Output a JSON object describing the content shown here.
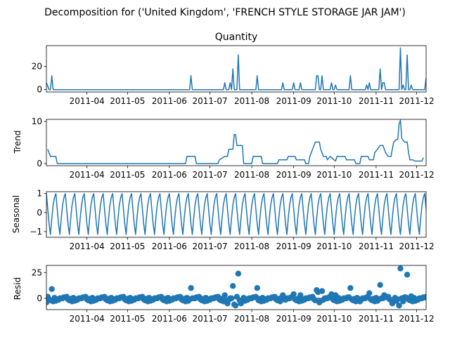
{
  "figure": {
    "suptitle": "Decomposition for ('United Kingdom', 'FRENCH STYLE STORAGE JAR JAM')",
    "series_color": "#1f77b4",
    "x_ticks": [
      "2011-04",
      "2011-05",
      "2011-06",
      "2011-07",
      "2011-08",
      "2011-09",
      "2011-10",
      "2011-11",
      "2011-12"
    ]
  },
  "chart_data": [
    {
      "type": "line",
      "title": "Quantity",
      "ylabel": "",
      "xlim": [
        "2011-03-02",
        "2011-12-08"
      ],
      "ylim": [
        -2,
        38
      ],
      "yticks": [
        0,
        20
      ],
      "points": [
        [
          "2011-03-02",
          6
        ],
        [
          "2011-03-04",
          0
        ],
        [
          "2011-03-05",
          0
        ],
        [
          "2011-03-06",
          12
        ],
        [
          "2011-03-07",
          0
        ],
        [
          "2011-06-16",
          0
        ],
        [
          "2011-06-17",
          12
        ],
        [
          "2011-06-18",
          0
        ],
        [
          "2011-07-11",
          0
        ],
        [
          "2011-07-12",
          6
        ],
        [
          "2011-07-13",
          0
        ],
        [
          "2011-07-15",
          0
        ],
        [
          "2011-07-16",
          6
        ],
        [
          "2011-07-17",
          0
        ],
        [
          "2011-07-18",
          18
        ],
        [
          "2011-07-19",
          0
        ],
        [
          "2011-07-21",
          0
        ],
        [
          "2011-07-22",
          30
        ],
        [
          "2011-07-23",
          0
        ],
        [
          "2011-08-04",
          0
        ],
        [
          "2011-08-05",
          12
        ],
        [
          "2011-08-06",
          0
        ],
        [
          "2011-08-23",
          0
        ],
        [
          "2011-08-24",
          6
        ],
        [
          "2011-08-25",
          0
        ],
        [
          "2011-08-31",
          0
        ],
        [
          "2011-09-01",
          6
        ],
        [
          "2011-09-02",
          0
        ],
        [
          "2011-09-05",
          0
        ],
        [
          "2011-09-06",
          6
        ],
        [
          "2011-09-07",
          0
        ],
        [
          "2011-09-17",
          0
        ],
        [
          "2011-09-18",
          12
        ],
        [
          "2011-09-19",
          12
        ],
        [
          "2011-09-20",
          0
        ],
        [
          "2011-09-21",
          0
        ],
        [
          "2011-09-22",
          12
        ],
        [
          "2011-09-23",
          0
        ],
        [
          "2011-09-28",
          0
        ],
        [
          "2011-09-29",
          6
        ],
        [
          "2011-09-30",
          0
        ],
        [
          "2011-10-01",
          0
        ],
        [
          "2011-10-02",
          4
        ],
        [
          "2011-10-03",
          0
        ],
        [
          "2011-10-12",
          0
        ],
        [
          "2011-10-13",
          12
        ],
        [
          "2011-10-14",
          0
        ],
        [
          "2011-10-24",
          0
        ],
        [
          "2011-10-25",
          4
        ],
        [
          "2011-10-26",
          0
        ],
        [
          "2011-10-27",
          6
        ],
        [
          "2011-10-28",
          0
        ],
        [
          "2011-11-03",
          0
        ],
        [
          "2011-11-04",
          18
        ],
        [
          "2011-11-05",
          0
        ],
        [
          "2011-11-06",
          6
        ],
        [
          "2011-11-07",
          6
        ],
        [
          "2011-11-08",
          0
        ],
        [
          "2011-11-18",
          0
        ],
        [
          "2011-11-19",
          36
        ],
        [
          "2011-11-20",
          0
        ],
        [
          "2011-11-21",
          4
        ],
        [
          "2011-11-22",
          0
        ],
        [
          "2011-11-23",
          0
        ],
        [
          "2011-11-24",
          30
        ],
        [
          "2011-11-25",
          0
        ],
        [
          "2011-11-26",
          0
        ],
        [
          "2011-11-27",
          4
        ],
        [
          "2011-11-28",
          0
        ],
        [
          "2011-12-07",
          0
        ],
        [
          "2011-12-08",
          10
        ]
      ]
    },
    {
      "type": "line",
      "title": "",
      "ylabel": "Trend",
      "xlim": [
        "2011-03-02",
        "2011-12-08"
      ],
      "ylim": [
        -0.5,
        10.5
      ],
      "yticks": [
        0,
        10
      ],
      "points": [
        [
          "2011-03-03",
          3.4
        ],
        [
          "2011-03-05",
          1.7
        ],
        [
          "2011-03-09",
          1.7
        ],
        [
          "2011-03-10",
          0
        ],
        [
          "2011-06-13",
          0
        ],
        [
          "2011-06-14",
          1.7
        ],
        [
          "2011-06-20",
          1.7
        ],
        [
          "2011-06-21",
          0
        ],
        [
          "2011-07-07",
          0
        ],
        [
          "2011-07-08",
          0.9
        ],
        [
          "2011-07-12",
          1.7
        ],
        [
          "2011-07-14",
          1.7
        ],
        [
          "2011-07-15",
          3.4
        ],
        [
          "2011-07-18",
          3.4
        ],
        [
          "2011-07-19",
          6.9
        ],
        [
          "2011-07-20",
          6.9
        ],
        [
          "2011-07-21",
          4.3
        ],
        [
          "2011-07-25",
          4.3
        ],
        [
          "2011-07-26",
          0
        ],
        [
          "2011-08-01",
          0
        ],
        [
          "2011-08-02",
          1.7
        ],
        [
          "2011-08-08",
          1.7
        ],
        [
          "2011-08-09",
          0
        ],
        [
          "2011-08-20",
          0
        ],
        [
          "2011-08-21",
          0.9
        ],
        [
          "2011-08-27",
          0.9
        ],
        [
          "2011-08-28",
          1.7
        ],
        [
          "2011-09-02",
          1.7
        ],
        [
          "2011-09-03",
          0.9
        ],
        [
          "2011-09-09",
          0.9
        ],
        [
          "2011-09-10",
          0
        ],
        [
          "2011-09-12",
          0
        ],
        [
          "2011-09-13",
          1.7
        ],
        [
          "2011-09-15",
          3.4
        ],
        [
          "2011-09-17",
          5.1
        ],
        [
          "2011-09-20",
          5.1
        ],
        [
          "2011-09-21",
          3.4
        ],
        [
          "2011-09-23",
          1.7
        ],
        [
          "2011-09-25",
          1.7
        ],
        [
          "2011-09-26",
          0.9
        ],
        [
          "2011-09-28",
          1.7
        ],
        [
          "2011-10-02",
          0.6
        ],
        [
          "2011-10-03",
          1.7
        ],
        [
          "2011-10-09",
          1.7
        ],
        [
          "2011-10-10",
          0.9
        ],
        [
          "2011-10-16",
          0.9
        ],
        [
          "2011-10-17",
          0
        ],
        [
          "2011-10-20",
          0
        ],
        [
          "2011-10-21",
          1.7
        ],
        [
          "2011-10-26",
          1.7
        ],
        [
          "2011-10-27",
          0.9
        ],
        [
          "2011-10-30",
          0.9
        ],
        [
          "2011-10-31",
          2.6
        ],
        [
          "2011-11-02",
          3.4
        ],
        [
          "2011-11-04",
          4.3
        ],
        [
          "2011-11-06",
          4.3
        ],
        [
          "2011-11-08",
          2.6
        ],
        [
          "2011-11-10",
          1.7
        ],
        [
          "2011-11-12",
          1.7
        ],
        [
          "2011-11-14",
          5.1
        ],
        [
          "2011-11-16",
          5.7
        ],
        [
          "2011-11-17",
          5.7
        ],
        [
          "2011-11-18",
          9.4
        ],
        [
          "2011-11-19",
          10.3
        ],
        [
          "2011-11-20",
          6.0
        ],
        [
          "2011-11-22",
          5.1
        ],
        [
          "2011-11-24",
          5.1
        ],
        [
          "2011-11-25",
          2.6
        ],
        [
          "2011-11-26",
          0.9
        ],
        [
          "2011-11-28",
          0.9
        ],
        [
          "2011-11-30",
          0.6
        ],
        [
          "2011-12-05",
          0.6
        ],
        [
          "2011-12-06",
          1.4
        ]
      ]
    },
    {
      "type": "line",
      "title": "",
      "ylabel": "Seasonal",
      "xlim": [
        "2011-03-02",
        "2011-12-08"
      ],
      "ylim": [
        -1.3,
        1.1
      ],
      "yticks": [
        -1,
        0,
        1
      ],
      "period_days": 7,
      "weekly_pattern": [
        1.0,
        0.2,
        -0.6,
        -1.15,
        -0.3,
        0.4,
        0.8
      ]
    },
    {
      "type": "scatter",
      "title": "",
      "ylabel": "Resid",
      "xlim": [
        "2011-03-02",
        "2011-12-08"
      ],
      "ylim": [
        -11,
        32
      ],
      "yticks": [
        0,
        25
      ],
      "zero_line": true,
      "baseline_residuals": [
        -3,
        -1,
        0,
        1,
        -2,
        0.5,
        -1.5,
        0,
        1.5,
        -0.5,
        -2.5,
        0,
        1,
        -1
      ],
      "highlight_points": [
        [
          "2011-03-02",
          -4
        ],
        [
          "2011-03-06",
          9
        ],
        [
          "2011-06-17",
          10
        ],
        [
          "2011-07-12",
          3
        ],
        [
          "2011-07-14",
          -5
        ],
        [
          "2011-07-18",
          12
        ],
        [
          "2011-07-19",
          -6
        ],
        [
          "2011-07-20",
          -7
        ],
        [
          "2011-07-22",
          24
        ],
        [
          "2011-07-24",
          -5
        ],
        [
          "2011-08-05",
          10
        ],
        [
          "2011-08-24",
          3
        ],
        [
          "2011-09-01",
          4
        ],
        [
          "2011-09-06",
          3
        ],
        [
          "2011-09-18",
          8
        ],
        [
          "2011-09-19",
          6
        ],
        [
          "2011-09-20",
          -4
        ],
        [
          "2011-09-22",
          7
        ],
        [
          "2011-09-29",
          4
        ],
        [
          "2011-10-02",
          3
        ],
        [
          "2011-10-13",
          10
        ],
        [
          "2011-10-20",
          -3
        ],
        [
          "2011-10-27",
          5
        ],
        [
          "2011-11-04",
          13
        ],
        [
          "2011-11-07",
          3
        ],
        [
          "2011-11-13",
          -5
        ],
        [
          "2011-11-18",
          -7
        ],
        [
          "2011-11-19",
          29
        ],
        [
          "2011-11-21",
          -3
        ],
        [
          "2011-11-24",
          23
        ],
        [
          "2011-11-27",
          2
        ]
      ]
    }
  ]
}
